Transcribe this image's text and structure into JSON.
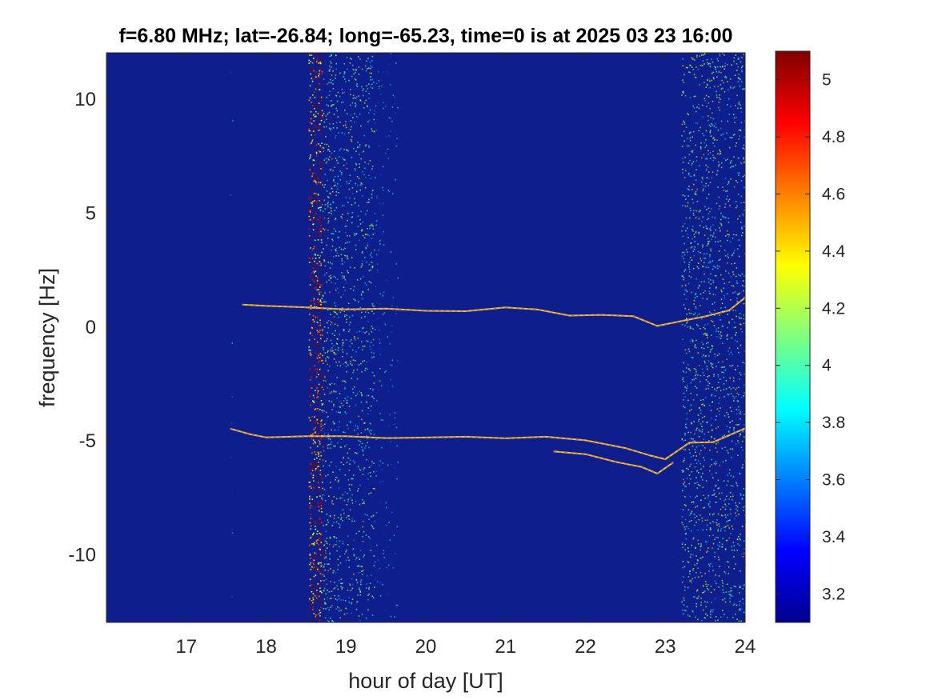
{
  "chart_data": {
    "type": "heatmap",
    "title": "f=6.80 MHz;  lat=-26.84; long=-65.23, time=0 is at 2025 03 23 16:00",
    "xlabel": "hour of day [UT]",
    "ylabel": "frequency [Hz]",
    "xlim": [
      16,
      24
    ],
    "ylim": [
      -13,
      12
    ],
    "x_ticks": [
      17,
      18,
      19,
      20,
      21,
      22,
      23,
      24
    ],
    "x_tick_labels": [
      "17",
      "18",
      "19",
      "20",
      "21",
      "22",
      "23",
      "24"
    ],
    "y_ticks": [
      10,
      5,
      0,
      -5,
      -10
    ],
    "y_tick_labels": [
      "10",
      "5",
      "0",
      "-5",
      "-10"
    ],
    "colorbar": {
      "colormap": "jet",
      "range": [
        3.1,
        5.1
      ],
      "ticks": [
        5,
        4.8,
        4.6,
        4.4,
        4.2,
        4,
        3.8,
        3.6,
        3.4,
        3.2
      ],
      "tick_labels": [
        "5",
        "4.8",
        "4.6",
        "4.4",
        "4.2",
        "4",
        "3.8",
        "3.6",
        "3.4",
        "3.2"
      ]
    },
    "background_color": "#0e1e8c",
    "noise_bands": [
      {
        "x_start": 18.53,
        "x_end": 18.7,
        "intensity": 1.0
      },
      {
        "x_start": 18.7,
        "x_end": 18.85,
        "intensity": 0.45
      },
      {
        "x_start": 18.85,
        "x_end": 19.35,
        "intensity": 0.35
      },
      {
        "x_start": 19.35,
        "x_end": 19.65,
        "intensity": 0.12
      },
      {
        "x_start": 23.2,
        "x_end": 24.0,
        "intensity": 0.4
      },
      {
        "x_start": 17.55,
        "x_end": 17.58,
        "intensity": 0.08
      }
    ],
    "traces": [
      {
        "x": [
          17.7,
          18.0,
          18.5,
          19.0,
          19.5,
          20.0,
          20.5,
          21.0,
          21.4,
          21.8,
          22.2,
          22.6,
          22.9,
          23.2,
          23.5,
          23.8,
          24.0
        ],
        "y": [
          1.0,
          0.9,
          0.8,
          0.75,
          0.7,
          0.6,
          0.65,
          0.75,
          0.7,
          0.55,
          0.45,
          0.35,
          0.0,
          0.3,
          0.5,
          0.7,
          1.3
        ]
      },
      {
        "x": [
          17.55,
          17.8,
          18.0,
          18.5,
          19.0,
          19.5,
          20.0,
          20.5,
          21.0,
          21.5,
          22.0,
          22.5,
          22.8,
          23.0,
          23.3,
          23.6,
          24.0
        ],
        "y": [
          -4.6,
          -4.7,
          -4.85,
          -4.9,
          -4.95,
          -4.9,
          -5.0,
          -4.95,
          -5.0,
          -4.9,
          -5.1,
          -5.3,
          -5.6,
          -5.8,
          -5.2,
          -5.0,
          -4.5
        ]
      },
      {
        "x": [
          21.6,
          22.0,
          22.4,
          22.7,
          22.9,
          23.1
        ],
        "y": [
          -5.5,
          -5.6,
          -5.9,
          -6.2,
          -6.4,
          -6.0
        ]
      }
    ]
  }
}
